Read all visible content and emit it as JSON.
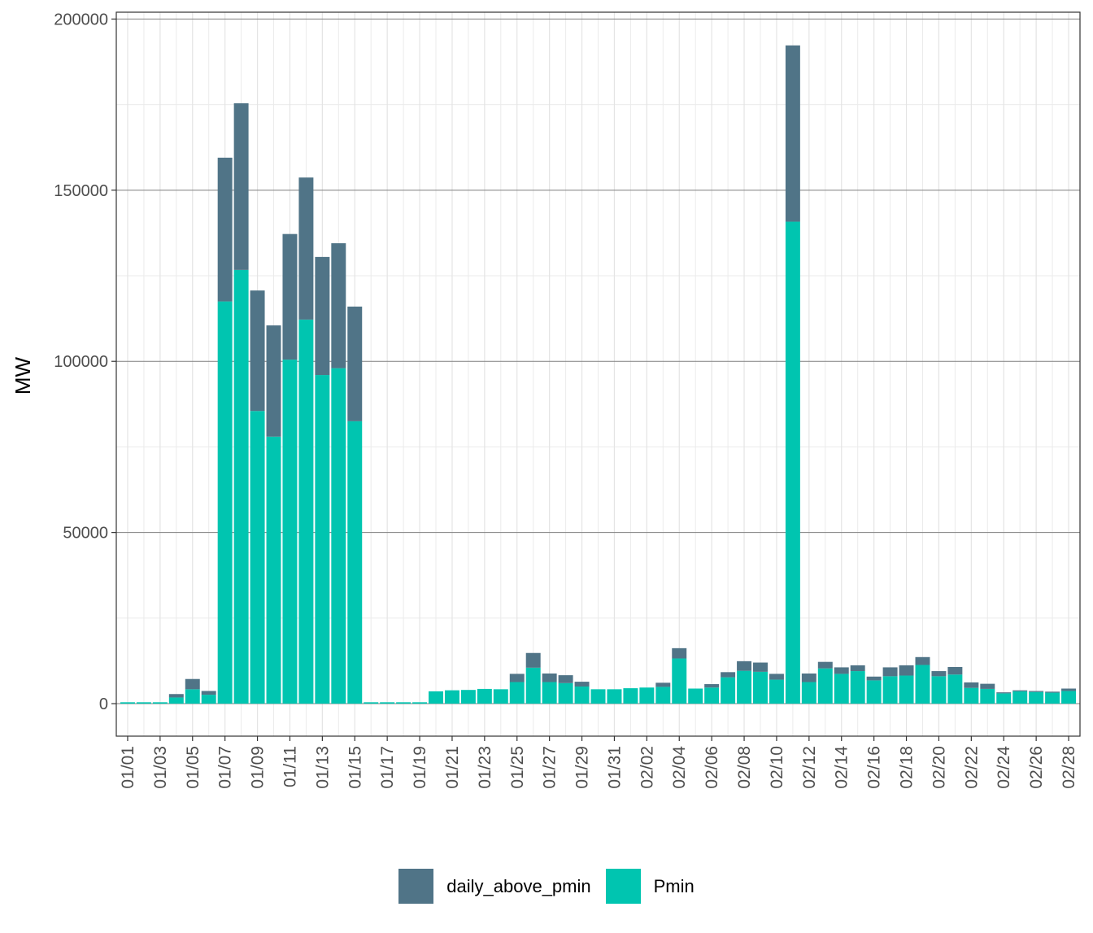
{
  "chart_data": {
    "type": "bar",
    "stacked": true,
    "ylabel": "MW",
    "xlabel": "",
    "ylim": [
      -9500,
      202000
    ],
    "yticks": [
      0,
      50000,
      100000,
      150000,
      200000
    ],
    "legend_position": "bottom",
    "categories": [
      "01/01",
      "01/02",
      "01/03",
      "01/04",
      "01/05",
      "01/06",
      "01/07",
      "01/08",
      "01/09",
      "01/10",
      "01/11",
      "01/12",
      "01/13",
      "01/14",
      "01/15",
      "01/16",
      "01/17",
      "01/18",
      "01/19",
      "01/20",
      "01/21",
      "01/22",
      "01/23",
      "01/24",
      "01/25",
      "01/26",
      "01/27",
      "01/28",
      "01/29",
      "01/30",
      "01/31",
      "02/01",
      "02/02",
      "02/03",
      "02/04",
      "02/05",
      "02/06",
      "02/07",
      "02/08",
      "02/09",
      "02/10",
      "02/11",
      "02/12",
      "02/13",
      "02/14",
      "02/15",
      "02/16",
      "02/17",
      "02/18",
      "02/19",
      "02/20",
      "02/21",
      "02/22",
      "02/23",
      "02/24",
      "02/25",
      "02/26",
      "02/27",
      "02/28"
    ],
    "tick_labels": [
      "01/01",
      "01/03",
      "01/05",
      "01/07",
      "01/09",
      "01/11",
      "01/13",
      "01/15",
      "01/17",
      "01/19",
      "01/21",
      "01/23",
      "01/25",
      "01/27",
      "01/29",
      "01/31",
      "02/02",
      "02/04",
      "02/06",
      "02/08",
      "02/10",
      "02/12",
      "02/14",
      "02/16",
      "02/18",
      "02/20",
      "02/22",
      "02/24",
      "02/26",
      "02/28"
    ],
    "series": [
      {
        "name": "Pmin",
        "color": "#00C5B0",
        "values": [
          400,
          400,
          400,
          1800,
          4200,
          2600,
          117500,
          126700,
          85500,
          78000,
          100500,
          112200,
          96000,
          98000,
          82500,
          400,
          400,
          400,
          400,
          3600,
          3900,
          4000,
          4300,
          4200,
          6300,
          10500,
          6300,
          6000,
          5000,
          4200,
          4200,
          4500,
          4700,
          4900,
          13200,
          4400,
          4700,
          7700,
          9600,
          9300,
          7000,
          140800,
          6300,
          10300,
          8700,
          9500,
          6800,
          8000,
          8200,
          11300,
          8000,
          8500,
          4600,
          4300,
          3000,
          3600,
          3400,
          3200,
          3700
        ]
      },
      {
        "name": "daily_above_pmin",
        "color": "#507487",
        "values": [
          0,
          0,
          0,
          1000,
          3000,
          1100,
          42000,
          48700,
          35200,
          32500,
          36700,
          41500,
          34500,
          36500,
          33500,
          0,
          0,
          0,
          0,
          0,
          0,
          0,
          0,
          0,
          2400,
          4300,
          2500,
          2300,
          1400,
          0,
          0,
          0,
          0,
          1200,
          3000,
          0,
          1000,
          1500,
          2800,
          2700,
          1700,
          51500,
          2500,
          1900,
          1900,
          1700,
          1100,
          2600,
          3000,
          2300,
          1500,
          2200,
          1600,
          1500,
          300,
          300,
          300,
          300,
          700
        ]
      }
    ],
    "legend_order": [
      "daily_above_pmin",
      "Pmin"
    ]
  }
}
